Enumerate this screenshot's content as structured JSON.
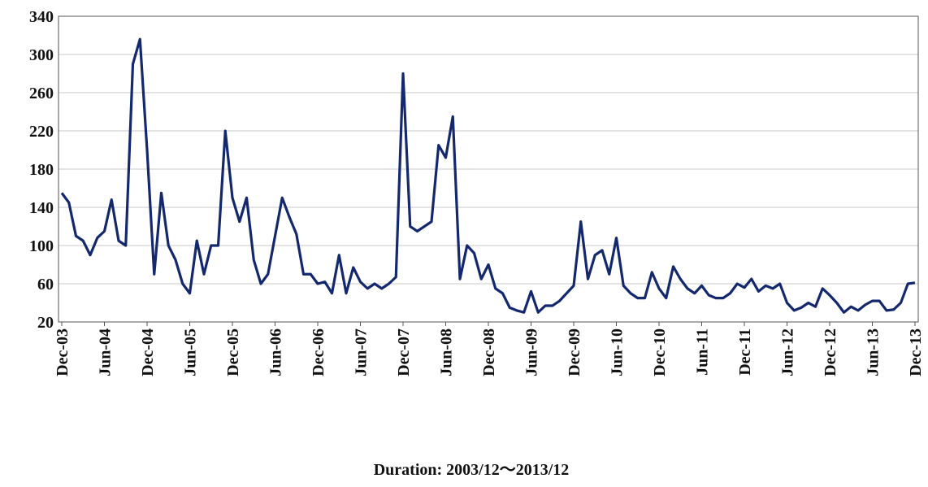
{
  "chart_data": {
    "type": "line",
    "xlabel": "Duration: 2003/12～2013/12",
    "categories": [
      "Dec-03",
      null,
      null,
      null,
      null,
      null,
      "Jun-04",
      null,
      null,
      null,
      null,
      null,
      "Dec-04",
      null,
      null,
      null,
      null,
      null,
      "Jun-05",
      null,
      null,
      null,
      null,
      null,
      "Dec-05",
      null,
      null,
      null,
      null,
      null,
      "Jun-06",
      null,
      null,
      null,
      null,
      null,
      "Dec-06",
      null,
      null,
      null,
      null,
      null,
      "Jun-07",
      null,
      null,
      null,
      null,
      null,
      "Dec-07",
      null,
      null,
      null,
      null,
      null,
      "Jun-08",
      null,
      null,
      null,
      null,
      null,
      "Dec-08",
      null,
      null,
      null,
      null,
      null,
      "Jun-09",
      null,
      null,
      null,
      null,
      null,
      "Dec-09",
      null,
      null,
      null,
      null,
      null,
      "Jun-10",
      null,
      null,
      null,
      null,
      null,
      "Dec-10",
      null,
      null,
      null,
      null,
      null,
      "Jun-11",
      null,
      null,
      null,
      null,
      null,
      "Dec-11",
      null,
      null,
      null,
      null,
      null,
      "Jun-12",
      null,
      null,
      null,
      null,
      null,
      "Dec-12",
      null,
      null,
      null,
      null,
      null,
      "Jun-13",
      null,
      null,
      null,
      null,
      null,
      "Dec-13"
    ],
    "values": [
      155,
      145,
      110,
      105,
      90,
      108,
      115,
      148,
      105,
      100,
      290,
      316,
      200,
      70,
      155,
      100,
      85,
      60,
      50,
      105,
      70,
      100,
      100,
      220,
      150,
      125,
      150,
      85,
      60,
      70,
      110,
      150,
      130,
      112,
      70,
      70,
      60,
      62,
      50,
      90,
      50,
      77,
      62,
      55,
      60,
      55,
      60,
      67,
      280,
      120,
      115,
      120,
      125,
      205,
      192,
      235,
      65,
      100,
      92,
      65,
      80,
      55,
      50,
      35,
      32,
      30,
      52,
      30,
      37,
      37,
      42,
      50,
      58,
      125,
      65,
      90,
      95,
      70,
      108,
      58,
      50,
      45,
      45,
      72,
      55,
      45,
      78,
      65,
      55,
      50,
      58,
      48,
      45,
      45,
      50,
      60,
      56,
      65,
      52,
      58,
      55,
      60,
      40,
      32,
      35,
      40,
      36,
      55,
      48,
      40,
      30,
      36,
      32,
      38,
      42,
      42,
      32,
      33,
      40,
      60,
      61
    ],
    "color": "#14286e",
    "ylim": [
      20,
      340
    ],
    "yticks": [
      20,
      60,
      100,
      140,
      180,
      220,
      260,
      300,
      340
    ],
    "grid": true
  }
}
